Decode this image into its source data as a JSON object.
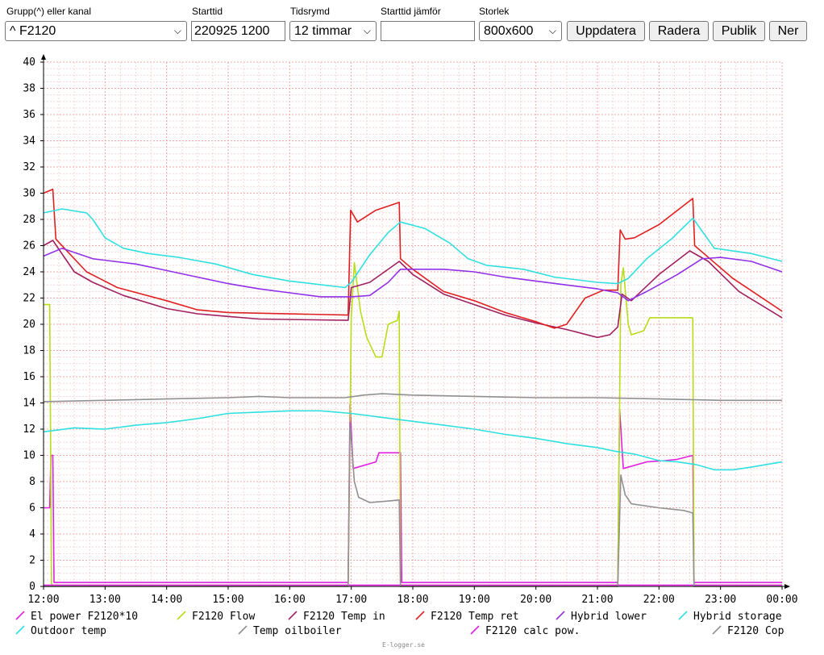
{
  "controls": {
    "group_label": "Grupp(^) eller kanal",
    "group_value": "^ F2120",
    "start_label": "Starttid",
    "start_value": "220925 1200",
    "range_label": "Tidsrymd",
    "range_value": "12 timmar",
    "compare_label": "Starttid jämför",
    "compare_value": "",
    "size_label": "Storlek",
    "size_value": "800x600",
    "btn_update": "Uppdatera",
    "btn_delete": "Radera",
    "btn_public": "Publik",
    "btn_down": "Ner"
  },
  "credit": "E-logger.se",
  "chart_data": {
    "type": "line",
    "x_label": "",
    "y_label": "",
    "x_unit": "hours",
    "xlim": [
      12,
      24
    ],
    "ylim": [
      0,
      40
    ],
    "x_ticks": [
      12,
      13,
      14,
      15,
      16,
      17,
      18,
      19,
      20,
      21,
      22,
      23,
      24
    ],
    "x_tick_labels": [
      "12:00",
      "13:00",
      "14:00",
      "15:00",
      "16:00",
      "17:00",
      "18:00",
      "19:00",
      "20:00",
      "21:00",
      "22:00",
      "23:00",
      "00:00"
    ],
    "y_ticks": [
      0,
      2,
      4,
      6,
      8,
      10,
      12,
      14,
      16,
      18,
      20,
      22,
      24,
      26,
      28,
      30,
      32,
      34,
      36,
      38,
      40
    ],
    "grid": true,
    "legend_position": "bottom",
    "series": [
      {
        "name": "El power F2120*10",
        "color": "#e020e0",
        "points": [
          [
            12,
            6
          ],
          [
            12.1,
            6
          ],
          [
            12.12,
            10
          ],
          [
            12.15,
            10
          ],
          [
            12.17,
            0.3
          ],
          [
            16.95,
            0.3
          ],
          [
            16.98,
            13.9
          ],
          [
            17.03,
            9
          ],
          [
            17.4,
            9.5
          ],
          [
            17.45,
            10.2
          ],
          [
            17.8,
            10.2
          ],
          [
            17.82,
            0.3
          ],
          [
            21.33,
            0.3
          ],
          [
            21.36,
            13.5
          ],
          [
            21.42,
            9
          ],
          [
            21.8,
            9.5
          ],
          [
            22.1,
            9.6
          ],
          [
            22.3,
            9.7
          ],
          [
            22.55,
            10
          ],
          [
            22.57,
            0.3
          ],
          [
            24,
            0.3
          ]
        ]
      },
      {
        "name": "F2120 Flow",
        "color": "#b8dc18",
        "points": [
          [
            12,
            21.5
          ],
          [
            12.1,
            21.5
          ],
          [
            12.13,
            0.1
          ],
          [
            16.95,
            0.1
          ],
          [
            17.0,
            20.5
          ],
          [
            17.05,
            24.7
          ],
          [
            17.15,
            21
          ],
          [
            17.25,
            19
          ],
          [
            17.4,
            17.5
          ],
          [
            17.5,
            17.5
          ],
          [
            17.6,
            20
          ],
          [
            17.75,
            20.3
          ],
          [
            17.78,
            21
          ],
          [
            17.8,
            0.1
          ],
          [
            21.33,
            0.1
          ],
          [
            21.38,
            23
          ],
          [
            21.42,
            24.3
          ],
          [
            21.5,
            20
          ],
          [
            21.55,
            19.2
          ],
          [
            21.75,
            19.5
          ],
          [
            21.85,
            20.5
          ],
          [
            22.55,
            20.5
          ],
          [
            22.57,
            0.1
          ],
          [
            24,
            0.1
          ]
        ]
      },
      {
        "name": "F2120 Temp in",
        "color": "#a02060",
        "points": [
          [
            12,
            26
          ],
          [
            12.15,
            26.4
          ],
          [
            12.5,
            24
          ],
          [
            12.8,
            23.2
          ],
          [
            13.3,
            22.2
          ],
          [
            14,
            21.2
          ],
          [
            14.5,
            20.8
          ],
          [
            15,
            20.6
          ],
          [
            15.5,
            20.4
          ],
          [
            16.95,
            20.3
          ],
          [
            17.0,
            22.8
          ],
          [
            17.3,
            23.2
          ],
          [
            17.78,
            24.8
          ],
          [
            18,
            23.8
          ],
          [
            18.5,
            22.3
          ],
          [
            19,
            21.5
          ],
          [
            19.5,
            20.7
          ],
          [
            20,
            20.1
          ],
          [
            20.5,
            19.6
          ],
          [
            21.0,
            19.0
          ],
          [
            21.2,
            19.2
          ],
          [
            21.33,
            19.8
          ],
          [
            21.4,
            22.3
          ],
          [
            21.55,
            21.8
          ],
          [
            22,
            23.8
          ],
          [
            22.5,
            25.6
          ],
          [
            22.8,
            24.8
          ],
          [
            23.3,
            22.5
          ],
          [
            24,
            20.5
          ]
        ]
      },
      {
        "name": "F2120 Temp ret",
        "color": "#e02020",
        "points": [
          [
            12,
            30
          ],
          [
            12.15,
            30.3
          ],
          [
            12.2,
            26.5
          ],
          [
            12.7,
            24
          ],
          [
            13.2,
            22.8
          ],
          [
            14,
            21.8
          ],
          [
            14.5,
            21.1
          ],
          [
            15,
            20.9
          ],
          [
            16.95,
            20.7
          ],
          [
            16.99,
            28.7
          ],
          [
            17.1,
            27.8
          ],
          [
            17.4,
            28.7
          ],
          [
            17.78,
            29.3
          ],
          [
            17.8,
            25
          ],
          [
            18,
            24.2
          ],
          [
            18.5,
            22.5
          ],
          [
            19,
            21.8
          ],
          [
            19.5,
            20.9
          ],
          [
            20,
            20.2
          ],
          [
            20.3,
            19.7
          ],
          [
            20.5,
            20
          ],
          [
            20.8,
            22
          ],
          [
            21.1,
            22.6
          ],
          [
            21.33,
            22.6
          ],
          [
            21.37,
            27.2
          ],
          [
            21.45,
            26.5
          ],
          [
            21.6,
            26.6
          ],
          [
            22,
            27.6
          ],
          [
            22.55,
            29.6
          ],
          [
            22.58,
            26
          ],
          [
            23.2,
            23.5
          ],
          [
            24,
            21
          ]
        ]
      },
      {
        "name": "Hybrid lower",
        "color": "#9030e8",
        "points": [
          [
            12,
            25.2
          ],
          [
            12.3,
            25.8
          ],
          [
            12.8,
            25
          ],
          [
            13.5,
            24.6
          ],
          [
            14,
            24.1
          ],
          [
            14.5,
            23.6
          ],
          [
            15,
            23.1
          ],
          [
            15.5,
            22.7
          ],
          [
            16,
            22.4
          ],
          [
            16.5,
            22.1
          ],
          [
            17,
            22.1
          ],
          [
            17.3,
            22.2
          ],
          [
            17.6,
            23.2
          ],
          [
            17.8,
            24.2
          ],
          [
            18.5,
            24.2
          ],
          [
            19,
            24
          ],
          [
            19.5,
            23.6
          ],
          [
            20,
            23.3
          ],
          [
            20.5,
            23
          ],
          [
            21,
            22.7
          ],
          [
            21.33,
            22.4
          ],
          [
            21.5,
            21.8
          ],
          [
            21.8,
            22.5
          ],
          [
            22.3,
            23.8
          ],
          [
            22.7,
            25
          ],
          [
            23,
            25.1
          ],
          [
            23.5,
            24.8
          ],
          [
            24,
            24
          ]
        ]
      },
      {
        "name": "Hybrid storage",
        "color": "#30e0e0",
        "points": [
          [
            12,
            28.5
          ],
          [
            12.3,
            28.8
          ],
          [
            12.7,
            28.5
          ],
          [
            12.8,
            28
          ],
          [
            13,
            26.6
          ],
          [
            13.3,
            25.8
          ],
          [
            13.7,
            25.4
          ],
          [
            14.2,
            25.1
          ],
          [
            14.8,
            24.6
          ],
          [
            15.4,
            23.8
          ],
          [
            16,
            23.3
          ],
          [
            16.9,
            22.8
          ],
          [
            17,
            23.2
          ],
          [
            17.3,
            25.3
          ],
          [
            17.6,
            27
          ],
          [
            17.8,
            27.8
          ],
          [
            18.2,
            27.3
          ],
          [
            18.6,
            26.2
          ],
          [
            18.9,
            25
          ],
          [
            19.2,
            24.5
          ],
          [
            19.8,
            24.2
          ],
          [
            20.3,
            23.6
          ],
          [
            21,
            23.2
          ],
          [
            21.33,
            23.1
          ],
          [
            21.5,
            23.5
          ],
          [
            21.8,
            25
          ],
          [
            22.2,
            26.5
          ],
          [
            22.55,
            28.1
          ],
          [
            22.9,
            25.8
          ],
          [
            23.5,
            25.4
          ],
          [
            24,
            24.8
          ]
        ]
      },
      {
        "name": "Outdoor temp",
        "color": "#30e0e0",
        "points": [
          [
            12,
            11.8
          ],
          [
            12.5,
            12.1
          ],
          [
            13,
            12
          ],
          [
            13.5,
            12.3
          ],
          [
            14,
            12.5
          ],
          [
            14.5,
            12.8
          ],
          [
            15,
            13.2
          ],
          [
            15.5,
            13.3
          ],
          [
            16,
            13.4
          ],
          [
            16.5,
            13.4
          ],
          [
            17,
            13.2
          ],
          [
            17.5,
            12.9
          ],
          [
            18,
            12.6
          ],
          [
            18.5,
            12.3
          ],
          [
            19,
            12
          ],
          [
            19.5,
            11.6
          ],
          [
            20,
            11.3
          ],
          [
            20.5,
            10.9
          ],
          [
            21,
            10.6
          ],
          [
            21.3,
            10.3
          ],
          [
            21.6,
            10.1
          ],
          [
            22,
            9.6
          ],
          [
            22.3,
            9.5
          ],
          [
            22.6,
            9.3
          ],
          [
            22.9,
            8.9
          ],
          [
            23.2,
            8.9
          ],
          [
            23.5,
            9.1
          ],
          [
            24,
            9.5
          ]
        ]
      },
      {
        "name": "Temp oilboiler",
        "color": "#909090",
        "points": [
          [
            12,
            14.1
          ],
          [
            13,
            14.2
          ],
          [
            14,
            14.3
          ],
          [
            15,
            14.4
          ],
          [
            15.5,
            14.5
          ],
          [
            16,
            14.4
          ],
          [
            16.9,
            14.4
          ],
          [
            17.2,
            14.6
          ],
          [
            17.5,
            14.7
          ],
          [
            18,
            14.6
          ],
          [
            19,
            14.5
          ],
          [
            20,
            14.4
          ],
          [
            21,
            14.4
          ],
          [
            22,
            14.3
          ],
          [
            23,
            14.2
          ],
          [
            24,
            14.2
          ]
        ]
      },
      {
        "name": "F2120 calc pow.",
        "color": "#e020e0",
        "points": [
          [
            12,
            0.1
          ],
          [
            24,
            0.1
          ]
        ]
      },
      {
        "name": "F2120 Cop",
        "color": "#909090",
        "points": [
          [
            12,
            0
          ],
          [
            16.95,
            0
          ],
          [
            16.98,
            12.5
          ],
          [
            17.05,
            8
          ],
          [
            17.12,
            6.8
          ],
          [
            17.3,
            6.4
          ],
          [
            17.55,
            6.5
          ],
          [
            17.78,
            6.6
          ],
          [
            17.8,
            0
          ],
          [
            21.33,
            0
          ],
          [
            21.38,
            8.5
          ],
          [
            21.45,
            7
          ],
          [
            21.55,
            6.3
          ],
          [
            22,
            6.0
          ],
          [
            22.4,
            5.8
          ],
          [
            22.55,
            5.6
          ],
          [
            22.57,
            0
          ],
          [
            24,
            0
          ]
        ]
      }
    ]
  }
}
